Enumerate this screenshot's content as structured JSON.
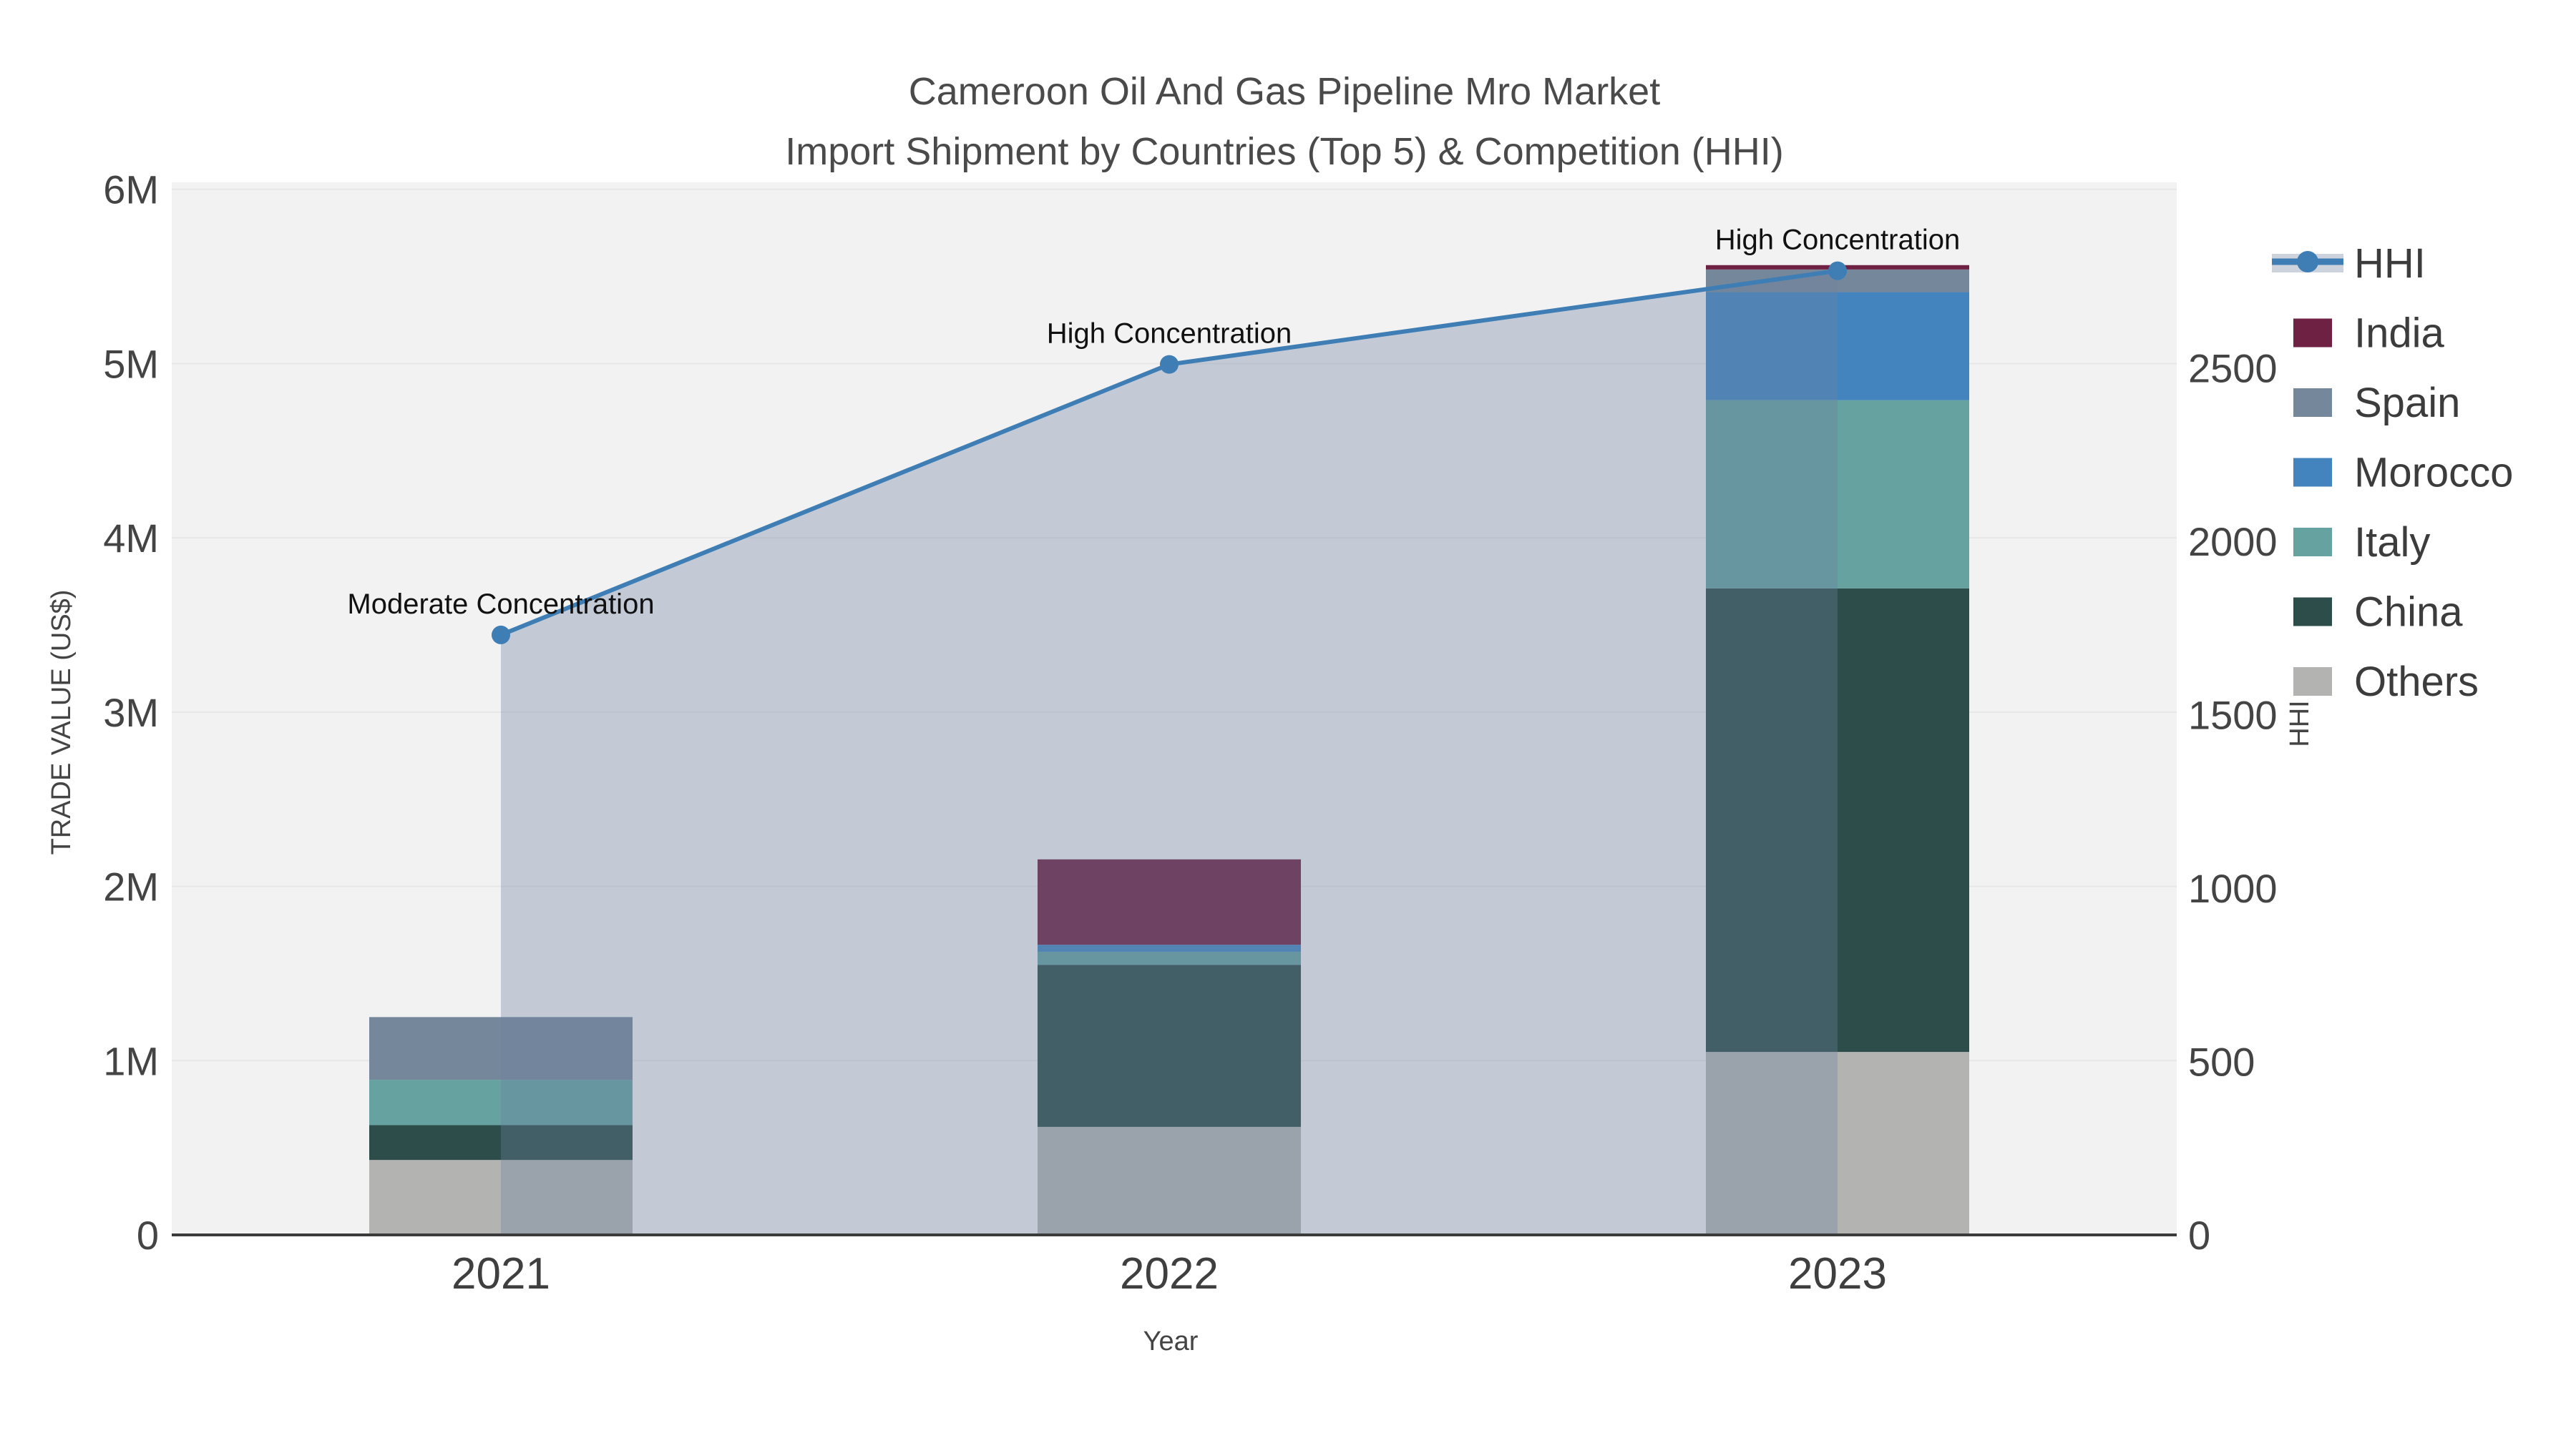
{
  "title": {
    "line1": "Cameroon Oil And Gas Pipeline Mro Market",
    "line2": "Import Shipment by Countries (Top 5) & Competition (HHI)"
  },
  "chart_data": {
    "type": "bar+line",
    "title": "Cameroon Oil And Gas Pipeline Mro Market Import Shipment by Countries (Top 5) & Competition (HHI)",
    "categories": [
      "2021",
      "2022",
      "2023"
    ],
    "xlabel": "Year",
    "ylabel_left": "TRADE VALUE (US$)",
    "ylabel_right": "HHI",
    "y_left_ticks": [
      {
        "label": "0",
        "value": 0
      },
      {
        "label": "1M",
        "value": 1000000
      },
      {
        "label": "2M",
        "value": 2000000
      },
      {
        "label": "3M",
        "value": 3000000
      },
      {
        "label": "4M",
        "value": 4000000
      },
      {
        "label": "5M",
        "value": 5000000
      },
      {
        "label": "6M",
        "value": 6000000
      }
    ],
    "y_right_ticks": [
      {
        "label": "0",
        "value": 0
      },
      {
        "label": "500",
        "value": 500
      },
      {
        "label": "1000",
        "value": 1000
      },
      {
        "label": "1500",
        "value": 1500
      },
      {
        "label": "2000",
        "value": 2000
      },
      {
        "label": "2500",
        "value": 2500
      }
    ],
    "y_left_range": [
      0,
      6040000
    ],
    "y_right_range": [
      0,
      3035
    ],
    "grid": true,
    "legend_position": "right",
    "bar_series_stack_order_bottom_to_top": [
      {
        "name": "Others",
        "color": "#B3B4B2",
        "values": [
          430000,
          620000,
          1050000
        ]
      },
      {
        "name": "China",
        "color": "#2C4D4A",
        "values": [
          200000,
          930000,
          2660000
        ]
      },
      {
        "name": "Italy",
        "color": "#66A2A0",
        "values": [
          260000,
          75000,
          1080000
        ]
      },
      {
        "name": "Morocco",
        "color": "#4384BF",
        "values": [
          0,
          40000,
          620000
        ]
      },
      {
        "name": "Spain",
        "color": "#75889B",
        "values": [
          360000,
          0,
          130000
        ]
      },
      {
        "name": "India",
        "color": "#6E2142",
        "values": [
          0,
          490000,
          25000
        ]
      }
    ],
    "line_series": {
      "name": "HHI",
      "color": "#3E7EB5",
      "area_fill": "rgba(108,130,160,0.35)",
      "legend_band_color": "#CCD3DC",
      "values": [
        1730,
        2510,
        2780
      ]
    },
    "annotations": [
      {
        "text": "Moderate Concentration",
        "year": "2021",
        "hhi": 1730
      },
      {
        "text": "High Concentration",
        "year": "2022",
        "hhi": 2510
      },
      {
        "text": "High Concentration",
        "year": "2023",
        "hhi": 2780
      }
    ],
    "legend_order": [
      "HHI",
      "India",
      "Spain",
      "Morocco",
      "Italy",
      "China",
      "Others"
    ],
    "colors": {
      "plot_background": "#F1F2F1",
      "gridline": "#E6E7E6",
      "axis_line": "#3B3B3B",
      "tick_text": "#444444",
      "title_text": "#4A4A4A",
      "annotation_text": "#111111"
    }
  }
}
